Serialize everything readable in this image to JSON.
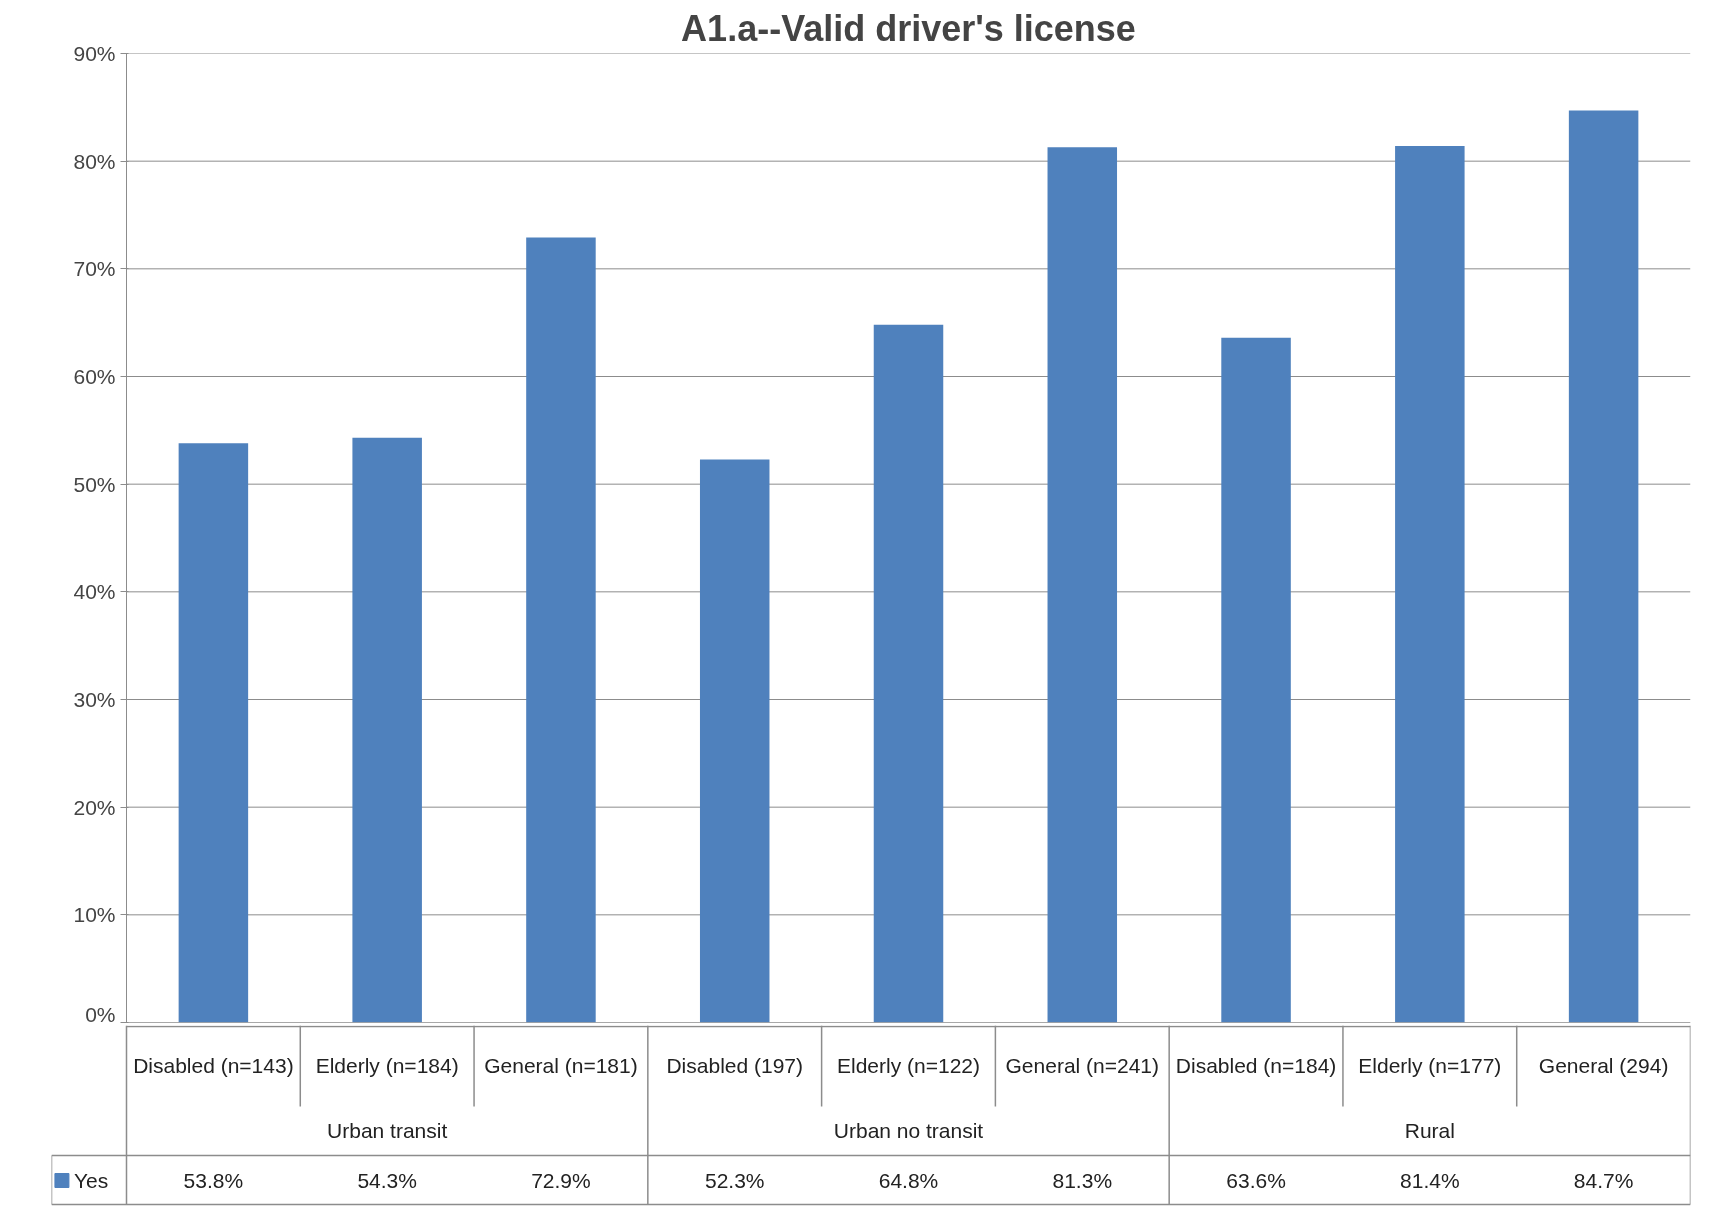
{
  "chart_data": {
    "type": "bar",
    "title": "A1.a--Valid driver's license",
    "categories": [
      "Disabled (n=143)",
      "Elderly (n=184)",
      "General (n=181)",
      "Disabled (197)",
      "Elderly (n=122)",
      "General (n=241)",
      "Disabled (n=184)",
      "Elderly (n=177)",
      "General (294)"
    ],
    "series": [
      {
        "name": "Yes",
        "color": "#4f81bd",
        "values": [
          53.8,
          54.3,
          72.9,
          52.3,
          64.8,
          81.3,
          63.6,
          81.4,
          84.7
        ],
        "value_labels": [
          "53.8%",
          "54.3%",
          "72.9%",
          "52.3%",
          "64.8%",
          "81.3%",
          "63.6%",
          "81.4%",
          "84.7%"
        ]
      }
    ],
    "annotations": [
      "Urban transit",
      "Urban no transit",
      "Rural"
    ],
    "ylim": [
      0,
      90
    ],
    "yticks": [
      {
        "value": 0,
        "label": "0%"
      },
      {
        "value": 10,
        "label": "10%"
      },
      {
        "value": 20,
        "label": "20%"
      },
      {
        "value": 30,
        "label": "30%"
      },
      {
        "value": 40,
        "label": "40%"
      },
      {
        "value": 50,
        "label": "50%"
      },
      {
        "value": 60,
        "label": "60%"
      },
      {
        "value": 70,
        "label": "70%"
      },
      {
        "value": 80,
        "label": "80%"
      },
      {
        "value": 90,
        "label": "90%"
      }
    ],
    "grid": "y",
    "legend": "bottom left"
  }
}
